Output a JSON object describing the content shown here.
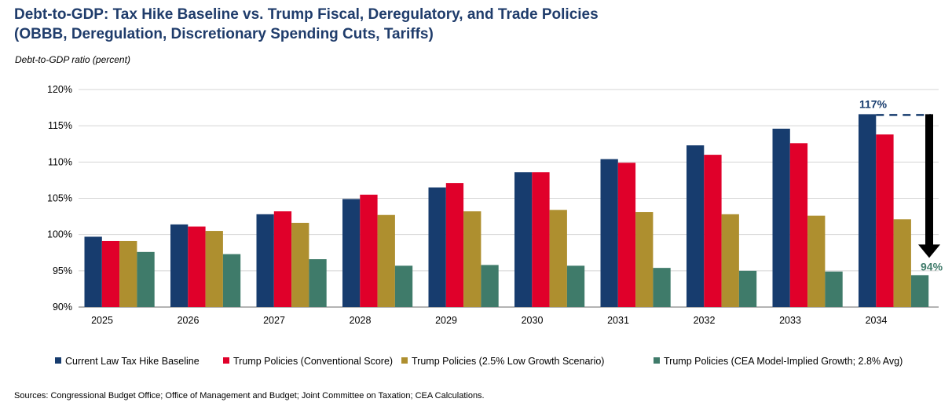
{
  "chart_data": {
    "type": "bar",
    "title": "Debt-to-GDP: Tax Hike Baseline vs. Trump Fiscal, Deregulatory, and Trade Policies",
    "subtitle": "(OBBB, Deregulation, Discretionary Spending Cuts, Tariffs)",
    "ylabel": "Debt-to-GDP ratio (percent)",
    "xlabel": "",
    "ylim": [
      90,
      120
    ],
    "yticks": [
      "90%",
      "95%",
      "100%",
      "105%",
      "110%",
      "115%",
      "120%"
    ],
    "ytick_values": [
      90,
      95,
      100,
      105,
      110,
      115,
      120
    ],
    "grid": true,
    "legend_position": "bottom",
    "categories": [
      "2025",
      "2026",
      "2027",
      "2028",
      "2029",
      "2030",
      "2031",
      "2032",
      "2033",
      "2034"
    ],
    "series": [
      {
        "name": "Current Law Tax Hike Baseline",
        "color": "#173c6e",
        "values": [
          99.7,
          101.4,
          102.8,
          104.9,
          106.5,
          108.6,
          110.4,
          112.3,
          114.6,
          116.6
        ]
      },
      {
        "name": "Trump Policies (Conventional Score)",
        "color": "#e0002a",
        "values": [
          99.1,
          101.1,
          103.2,
          105.5,
          107.1,
          108.6,
          109.9,
          111.0,
          112.6,
          113.8
        ]
      },
      {
        "name": "Trump Policies (2.5% Low Growth Scenario)",
        "color": "#ae8f2f",
        "values": [
          99.1,
          100.5,
          101.6,
          102.7,
          103.2,
          103.4,
          103.1,
          102.8,
          102.6,
          102.1
        ]
      },
      {
        "name": "Trump Policies (CEA Model-Implied Growth; 2.8% Avg)",
        "color": "#3f7b6a",
        "values": [
          97.6,
          97.3,
          96.6,
          95.7,
          95.8,
          95.7,
          95.4,
          95.0,
          94.9,
          94.4
        ]
      }
    ],
    "annotations": [
      {
        "text": "117%",
        "color": "#173c6e"
      },
      {
        "text": "94%",
        "color": "#3f7b6a"
      }
    ],
    "source": "Sources: Congressional Budget Office; Office of Management and Budget; Joint Committee on Taxation; CEA Calculations."
  }
}
